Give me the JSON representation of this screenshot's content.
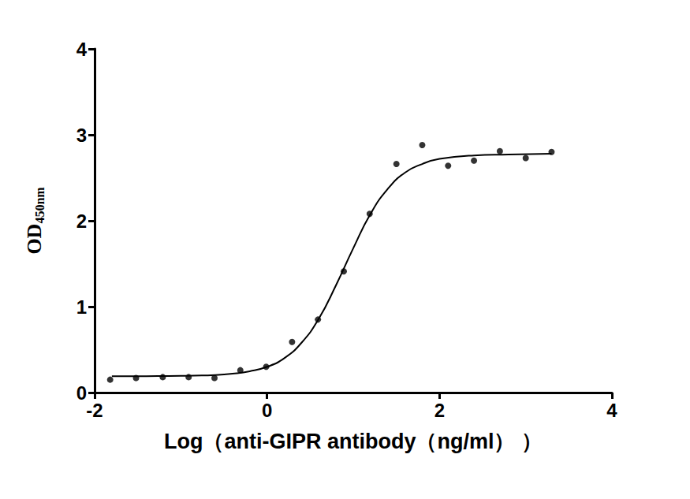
{
  "chart_data": {
    "type": "scatter",
    "xlabel": "Log（anti-GIPR antibody（ng/ml） ）",
    "ylabel": "OD450nm",
    "xlim": [
      -2,
      4
    ],
    "xticks": [
      -2,
      0,
      2,
      4
    ],
    "ylim": [
      0,
      4
    ],
    "yticks": [
      0,
      1,
      2,
      3,
      4
    ],
    "grid": false,
    "series": [
      {
        "type": "scatter",
        "color": "#000000",
        "marker": "circle",
        "x": [
          -1.82,
          -1.52,
          -1.21,
          -0.91,
          -0.61,
          -0.31,
          -0.01,
          0.29,
          0.59,
          0.89,
          1.19,
          1.5,
          1.8,
          2.1,
          2.4,
          2.7,
          3.0,
          3.3
        ],
        "values": [
          0.15,
          0.17,
          0.18,
          0.18,
          0.17,
          0.26,
          0.3,
          0.59,
          0.85,
          1.41,
          2.08,
          2.66,
          2.88,
          2.64,
          2.7,
          2.81,
          2.73,
          2.8
        ]
      },
      {
        "type": "line",
        "color": "#000000",
        "line_style": "solid",
        "x": [
          -1.8,
          -1.4,
          -1.0,
          -0.6,
          -0.4,
          -0.2,
          0.0,
          0.2,
          0.4,
          0.6,
          0.8,
          1.0,
          1.2,
          1.4,
          1.6,
          1.8,
          2.0,
          2.4,
          2.8,
          3.3
        ],
        "values": [
          0.19,
          0.191,
          0.194,
          0.205,
          0.22,
          0.248,
          0.3,
          0.4,
          0.58,
          0.86,
          1.25,
          1.68,
          2.08,
          2.37,
          2.56,
          2.66,
          2.72,
          2.76,
          2.77,
          2.78
        ]
      }
    ]
  }
}
